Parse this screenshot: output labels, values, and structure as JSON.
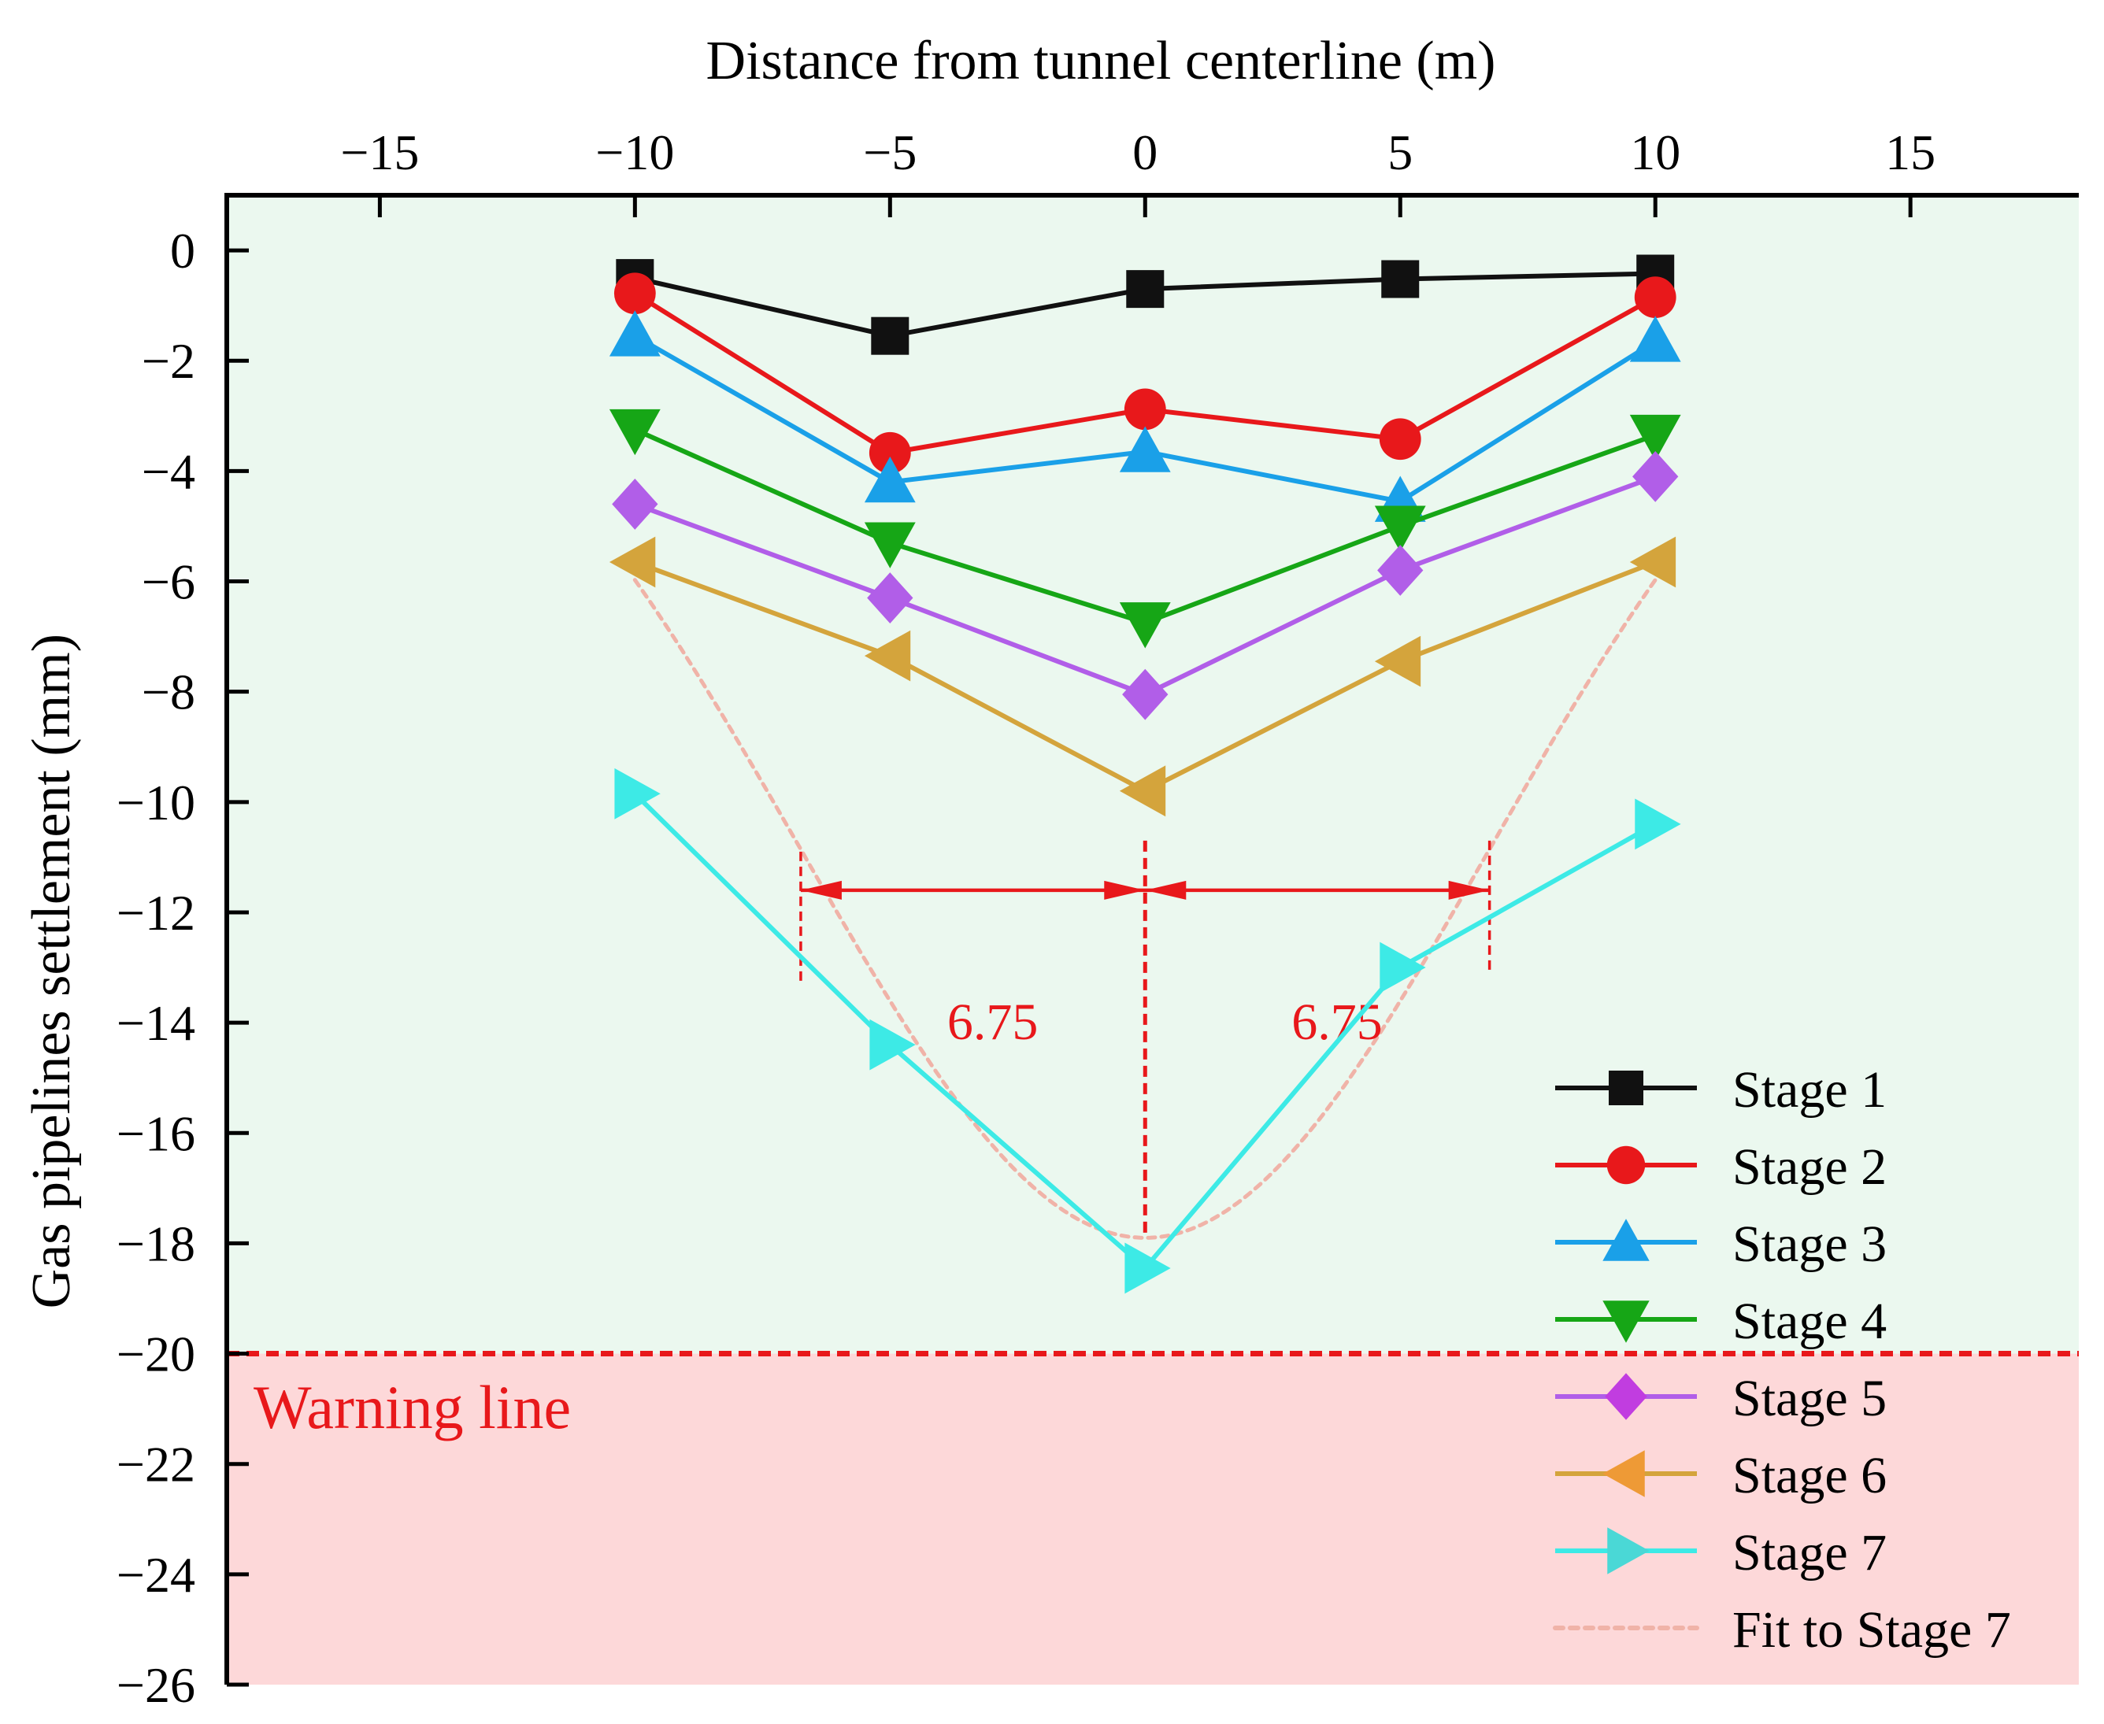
{
  "chart_data": {
    "type": "line",
    "title": "",
    "xlabel": "Distance from tunnel centerline (m)",
    "ylabel": "Gas pipelines settlement (mm)",
    "xlim": [
      -18,
      18.3
    ],
    "ylim": [
      -26,
      1
    ],
    "x_ticks": [
      -15,
      -10,
      -5,
      0,
      5,
      10,
      15
    ],
    "y_ticks": [
      0,
      -2,
      -4,
      -6,
      -8,
      -10,
      -12,
      -14,
      -16,
      -18,
      -20,
      -22,
      -24,
      -26
    ],
    "x": [
      -10,
      -5,
      0,
      5,
      10
    ],
    "series": [
      {
        "name": "Stage 1",
        "values": [
          -0.5,
          -1.55,
          -0.7,
          -0.52,
          -0.42
        ],
        "color": "#111111",
        "marker": "square"
      },
      {
        "name": "Stage 2",
        "values": [
          -0.78,
          -3.67,
          -2.88,
          -3.42,
          -0.85
        ],
        "color": "#e8181b",
        "marker": "circle"
      },
      {
        "name": "Stage 3",
        "values": [
          -1.55,
          -4.2,
          -3.65,
          -4.55,
          -1.65
        ],
        "color": "#1aa0e8",
        "marker": "triangle-up"
      },
      {
        "name": "Stage 4",
        "values": [
          -3.25,
          -5.3,
          -6.75,
          -5.0,
          -3.35
        ],
        "color": "#16a616",
        "marker": "triangle-down"
      },
      {
        "name": "Stage 5",
        "values": [
          -4.6,
          -6.3,
          -8.05,
          -5.8,
          -4.1
        ],
        "color": "#b15ee8",
        "marker": "diamond"
      },
      {
        "name": "Stage 6",
        "values": [
          -5.65,
          -7.35,
          -9.8,
          -7.45,
          -5.65
        ],
        "color": "#d4a43c",
        "marker": "triangle-left"
      },
      {
        "name": "Stage 7",
        "values": [
          -9.85,
          -14.4,
          -18.45,
          -13.0,
          -10.4
        ],
        "color": "#3deae6",
        "marker": "triangle-right"
      }
    ],
    "fit": {
      "name": "Fit to Stage 7",
      "type": "gaussian",
      "smax": -17.9,
      "i": 6.75,
      "x_range": [
        -10,
        10
      ],
      "color": "#f0b3a8"
    },
    "legend": {
      "position": "bottom-right",
      "entries": [
        {
          "label": "Stage 1",
          "color": "#111111",
          "marker": "square",
          "marker_color": "#111111"
        },
        {
          "label": "Stage 2",
          "color": "#e8181b",
          "marker": "circle",
          "marker_color": "#e8181b"
        },
        {
          "label": "Stage 3",
          "color": "#1aa0e8",
          "marker": "triangle-up",
          "marker_color": "#1aa0e8"
        },
        {
          "label": "Stage 4",
          "color": "#16a616",
          "marker": "triangle-down",
          "marker_color": "#16a616"
        },
        {
          "label": "Stage 5",
          "color": "#b15ee8",
          "marker": "diamond",
          "marker_color": "#c13de0"
        },
        {
          "label": "Stage 6",
          "color": "#d4a43c",
          "marker": "triangle-left",
          "marker_color": "#ee9a36"
        },
        {
          "label": "Stage 7",
          "color": "#3deae6",
          "marker": "triangle-right",
          "marker_color": "#4ad8d6"
        },
        {
          "label": "Fit to Stage 7",
          "color": "#f0b3a8",
          "marker": "none",
          "dashed": true
        }
      ]
    },
    "regions": {
      "safe_color": "#ebf8ef",
      "warning_color": "#fdd8d9",
      "warning_y": -20,
      "warning_label": "Warning line",
      "warning_line_color": "#e8181b"
    },
    "annotations": {
      "center_x": 0,
      "half_width": 6.75,
      "arrow_y": -11.6,
      "left_label": "6.75",
      "right_label": "6.75",
      "color": "#e8181b"
    },
    "grid": false
  }
}
